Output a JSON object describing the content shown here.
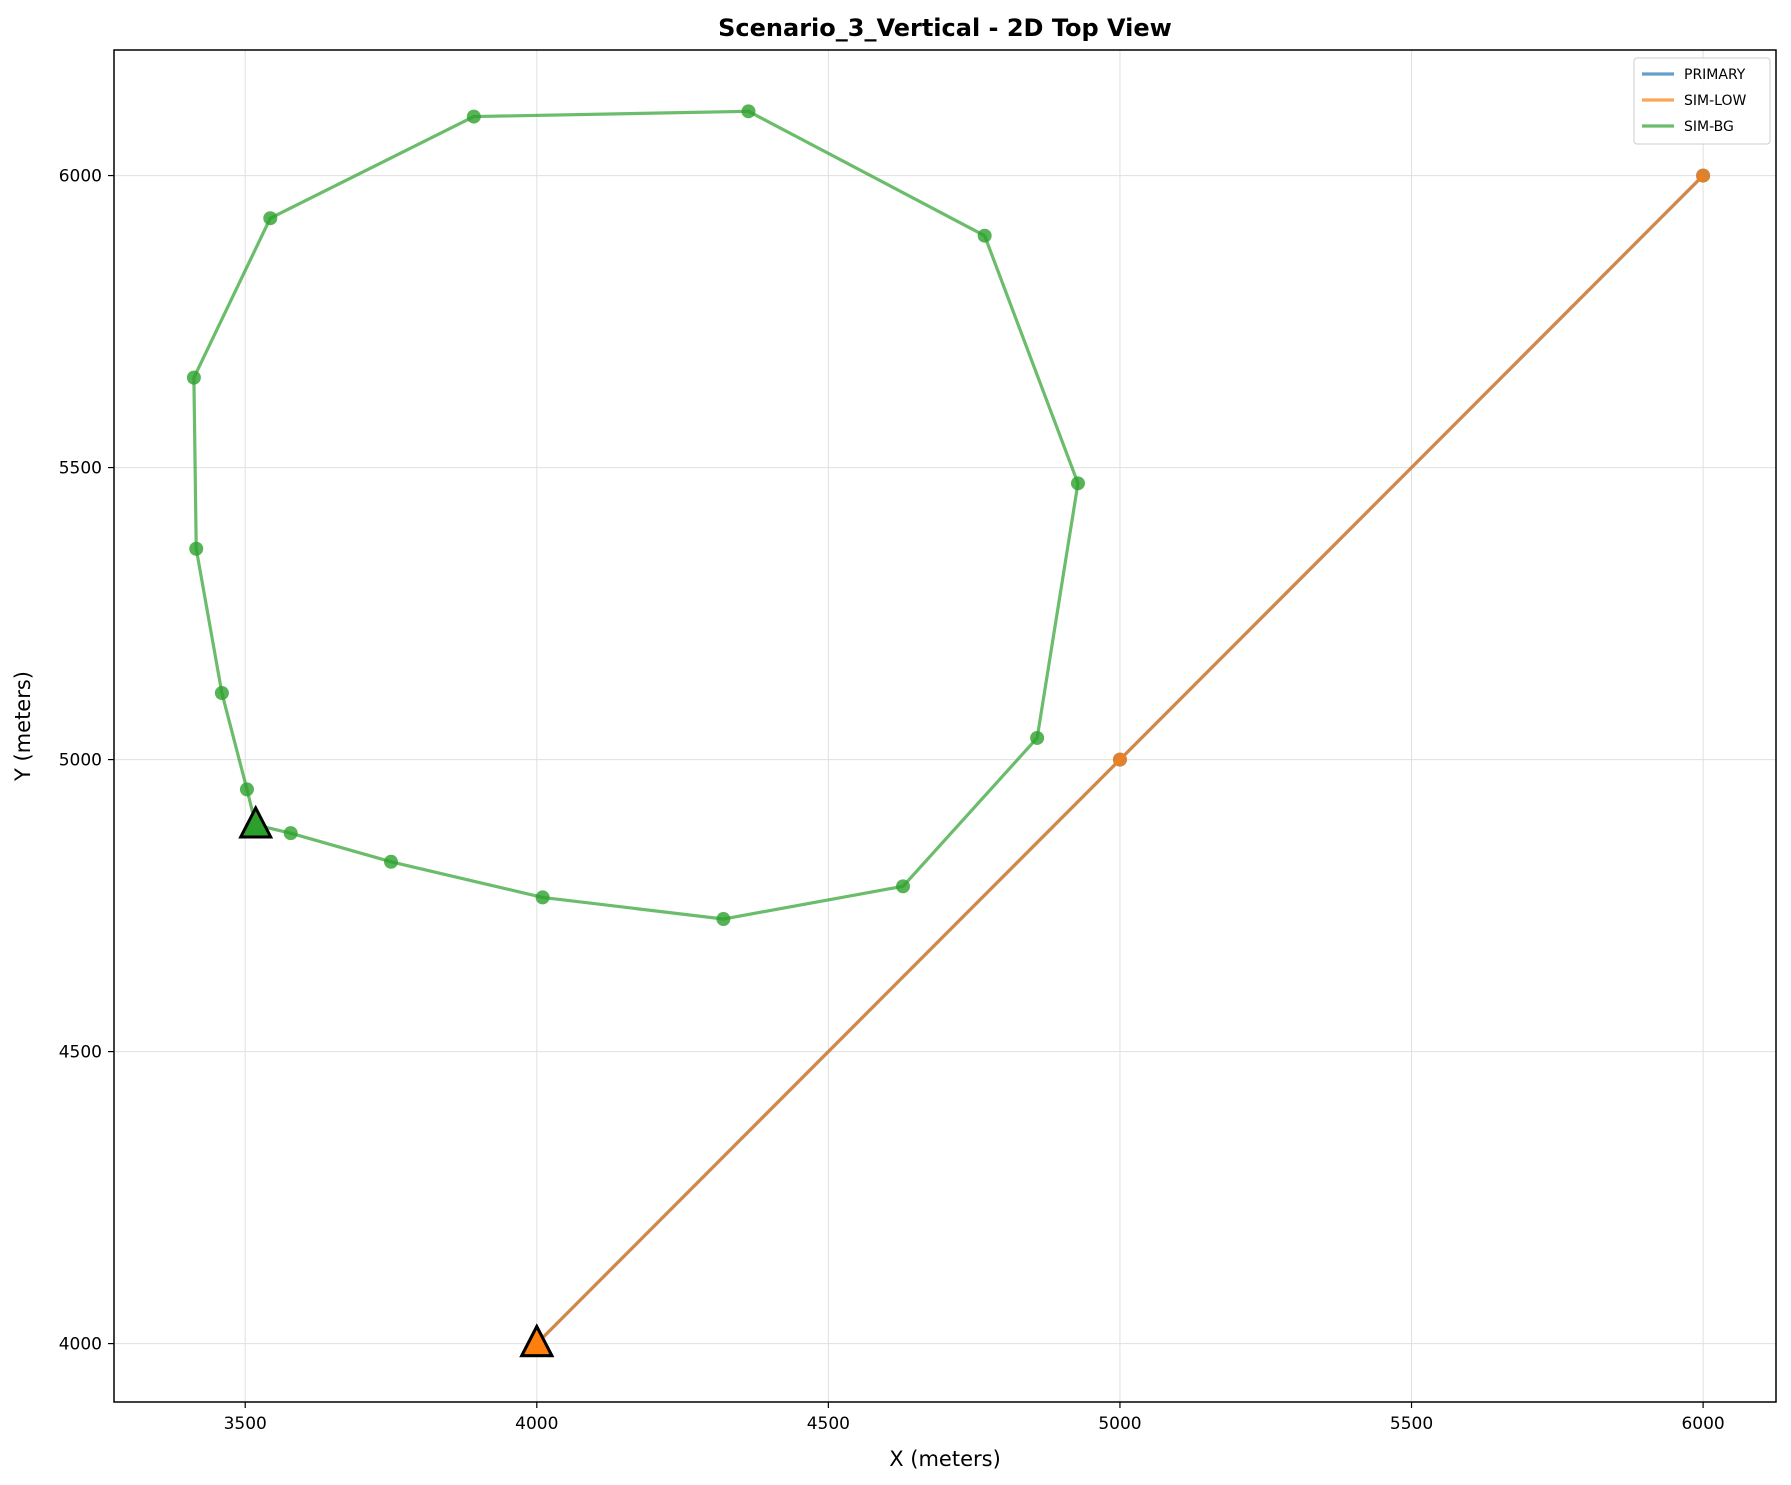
{
  "chart_data": {
    "type": "line",
    "title": "Scenario_3_Vertical - 2D Top View",
    "xlabel": "X (meters)",
    "ylabel": "Y (meters)",
    "xlim": [
      3275,
      6125
    ],
    "ylim": [
      3900,
      6215
    ],
    "xticks": [
      3500,
      4000,
      4500,
      5000,
      5500,
      6000
    ],
    "yticks": [
      4000,
      4500,
      5000,
      5500,
      6000
    ],
    "grid": true,
    "legend_position": "top-right",
    "series": [
      {
        "name": "PRIMARY",
        "color": "#1f77b4",
        "points": [
          [
            4000,
            4000
          ],
          [
            5000,
            5000
          ],
          [
            6000,
            6000
          ]
        ],
        "start": [
          4000,
          4000
        ]
      },
      {
        "name": "SIM-LOW",
        "color": "#ff7f0e",
        "points": [
          [
            4000,
            4000
          ],
          [
            5000,
            5000
          ],
          [
            6000,
            6000
          ]
        ],
        "start": [
          4000,
          4000
        ]
      },
      {
        "name": "SIM-BG",
        "color": "#2ca02c",
        "points": [
          [
            3518,
            4888
          ],
          [
            3578,
            4874
          ],
          [
            3750,
            4825
          ],
          [
            4010,
            4764
          ],
          [
            4320,
            4727
          ],
          [
            4628,
            4783
          ],
          [
            4858,
            5037
          ],
          [
            4928,
            5473
          ],
          [
            4768,
            5897
          ],
          [
            4363,
            6110
          ],
          [
            3892,
            6101
          ],
          [
            3543,
            5927
          ],
          [
            3412,
            5654
          ],
          [
            3416,
            5361
          ],
          [
            3460,
            5114
          ],
          [
            3503,
            4949
          ],
          [
            3518,
            4888
          ]
        ],
        "start": [
          3518,
          4888
        ]
      }
    ]
  }
}
